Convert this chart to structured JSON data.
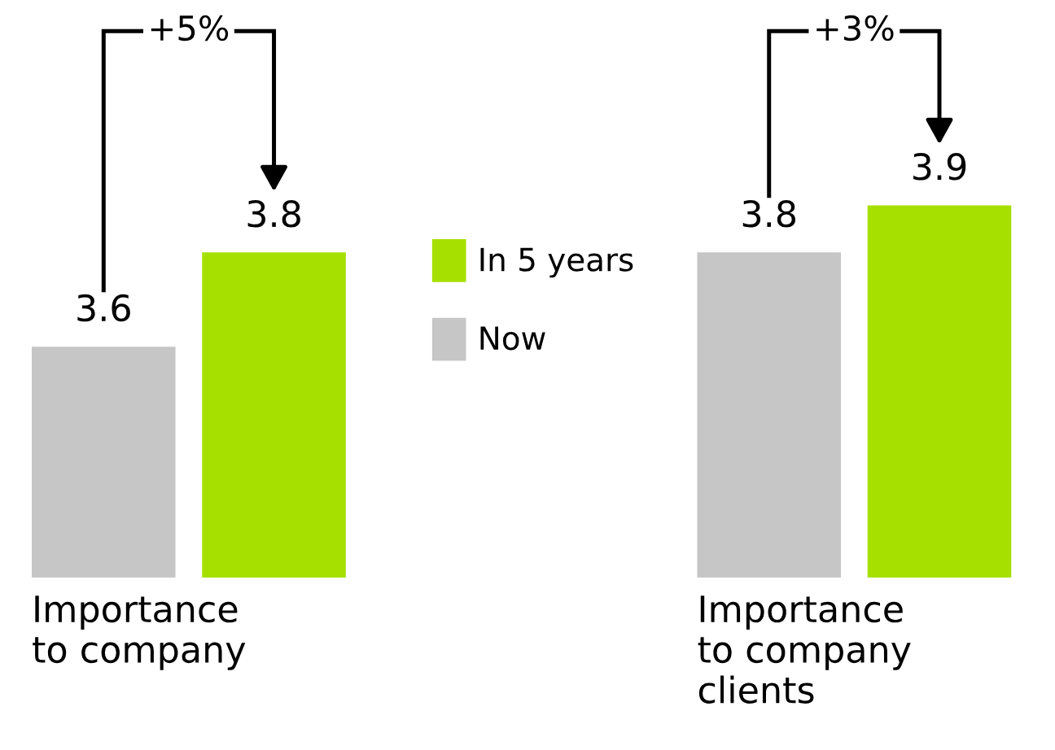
{
  "chart_data": {
    "type": "bar",
    "categories": [
      "Importance\nto company",
      "Importance\nto company\nclients"
    ],
    "series": [
      {
        "name": "Now",
        "color": "#c6c6c6",
        "values": [
          3.6,
          3.8
        ]
      },
      {
        "name": "In 5 years",
        "color": "#a6e000",
        "values": [
          3.8,
          3.9
        ]
      }
    ],
    "ylim": [
      3.11,
      4.32
    ],
    "data_labels": true,
    "legend": "center",
    "annotations": [
      "+5%",
      "+3%"
    ]
  }
}
